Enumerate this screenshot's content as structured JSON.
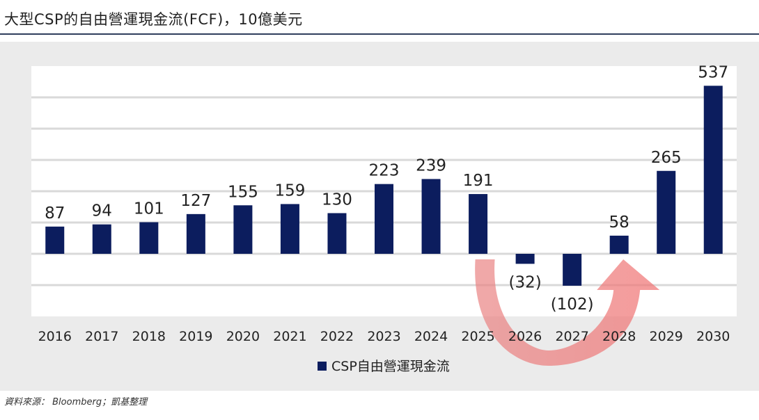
{
  "header": {
    "title": "大型CSP的自由營運現金流(FCF)，10億美元"
  },
  "footer": {
    "source": "資料來源： Bloomberg；凱基整理"
  },
  "colors": {
    "bar": "#0c1d5e",
    "plot_bg": "#ffffff",
    "panel_bg": "#ebebeb",
    "grid": "#d9d9d9",
    "arrow": "#ec6a6a"
  },
  "chart_data": {
    "type": "bar",
    "title": "大型CSP的自由營運現金流(FCF)，10億美元",
    "categories": [
      "2016",
      "2017",
      "2018",
      "2019",
      "2020",
      "2021",
      "2022",
      "2023",
      "2024",
      "2025",
      "2026",
      "2027",
      "2028",
      "2029",
      "2030"
    ],
    "series": [
      {
        "name": "CSP自由營運現金流",
        "values": [
          87,
          94,
          101,
          127,
          155,
          159,
          130,
          223,
          239,
          191,
          -32,
          -102,
          58,
          265,
          537
        ],
        "labels": [
          "87",
          "94",
          "101",
          "127",
          "155",
          "159",
          "130",
          "223",
          "239",
          "191",
          "(32)",
          "(102)",
          "58",
          "265",
          "537"
        ]
      }
    ],
    "ylim": [
      -200,
      600
    ],
    "grid": true,
    "legend": "bottom-center",
    "annotation": "curved arrow from 2025 down through 2026–2027 and up to 2028"
  }
}
